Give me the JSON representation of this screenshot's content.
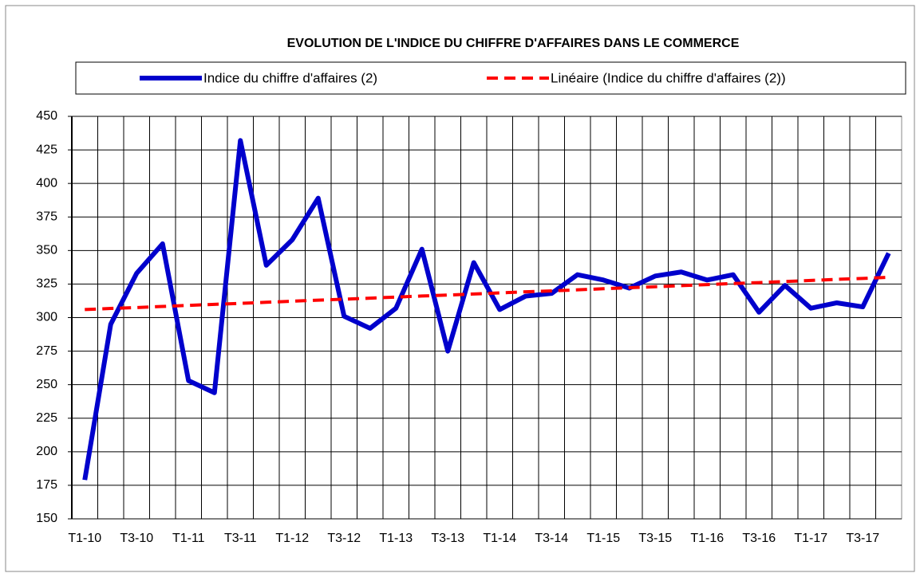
{
  "chart_data": {
    "type": "line",
    "title": "EVOLUTION DE L'INDICE DU CHIFFRE D'AFFAIRES DANS LE COMMERCE",
    "categories": [
      "T1-10",
      null,
      "T3-10",
      null,
      "T1-11",
      null,
      "T3-11",
      null,
      "T1-12",
      null,
      "T3-12",
      null,
      "T1-13",
      null,
      "T3-13",
      null,
      "T1-14",
      null,
      "T3-14",
      null,
      "T1-15",
      null,
      "T3-15",
      null,
      "T1-16",
      null,
      "T3-16",
      null,
      "T1-17",
      null,
      "T3-17",
      null
    ],
    "series": [
      {
        "name": "Indice du chiffre d'affaires (2)",
        "color": "#0000cc",
        "style": "solid",
        "values": [
          179,
          295,
          333,
          355,
          253,
          244,
          432,
          339,
          358,
          389,
          301,
          292,
          307,
          351,
          275,
          341,
          306,
          316,
          318,
          332,
          328,
          322,
          331,
          334,
          328,
          332,
          304,
          324,
          307,
          311,
          308,
          348
        ]
      },
      {
        "name": "Linéaire (Indice du chiffre d'affaires (2))",
        "color": "#ff0000",
        "style": "dashed",
        "values": [
          306.0,
          306.8,
          307.5,
          308.3,
          309.1,
          309.9,
          310.6,
          311.4,
          312.2,
          313.0,
          313.7,
          314.5,
          315.3,
          316.1,
          316.8,
          317.6,
          318.4,
          319.2,
          319.9,
          320.7,
          321.5,
          322.3,
          323.0,
          323.8,
          324.6,
          325.4,
          326.1,
          326.9,
          327.7,
          328.5,
          329.2,
          330.0
        ]
      }
    ],
    "ylim": [
      150,
      450
    ],
    "yticks": [
      150,
      175,
      200,
      225,
      250,
      275,
      300,
      325,
      350,
      375,
      400,
      425,
      450
    ],
    "grid": true,
    "legend": "top"
  }
}
